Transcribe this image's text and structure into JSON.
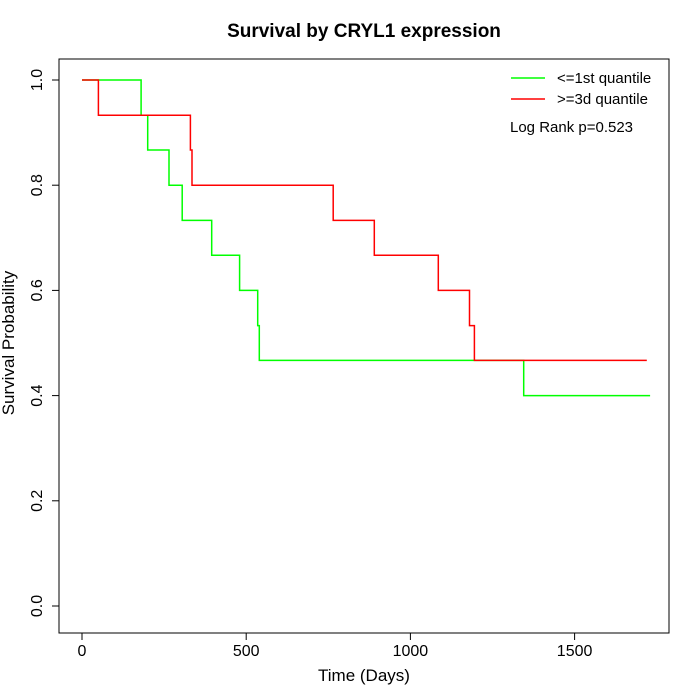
{
  "chart_data": {
    "type": "line",
    "step": true,
    "title": "Survival by CRYL1 expression",
    "xlabel": "Time (Days)",
    "ylabel": "Survival Probability",
    "xlim": [
      0,
      1750
    ],
    "ylim": [
      0,
      1.0
    ],
    "x_ticks": [
      "0",
      "500",
      "1000",
      "1500"
    ],
    "y_ticks": [
      "0.0",
      "0.2",
      "0.4",
      "0.6",
      "0.8",
      "1.0"
    ],
    "grid": false,
    "legend_position": "top-right",
    "annotation": "Log Rank p=0.523",
    "series": [
      {
        "name": "<=1st quantile",
        "color": "#00ff00",
        "points": [
          [
            0,
            1.0
          ],
          [
            180,
            1.0
          ],
          [
            180,
            0.933
          ],
          [
            200,
            0.933
          ],
          [
            200,
            0.867
          ],
          [
            265,
            0.867
          ],
          [
            265,
            0.8
          ],
          [
            305,
            0.8
          ],
          [
            305,
            0.733
          ],
          [
            395,
            0.733
          ],
          [
            395,
            0.667
          ],
          [
            480,
            0.667
          ],
          [
            480,
            0.6
          ],
          [
            535,
            0.6
          ],
          [
            535,
            0.533
          ],
          [
            540,
            0.533
          ],
          [
            540,
            0.467
          ],
          [
            1345,
            0.467
          ],
          [
            1345,
            0.4
          ],
          [
            1730,
            0.4
          ]
        ]
      },
      {
        "name": ">=3d quantile",
        "color": "#ff0000",
        "points": [
          [
            0,
            1.0
          ],
          [
            50,
            1.0
          ],
          [
            50,
            0.933
          ],
          [
            330,
            0.933
          ],
          [
            330,
            0.867
          ],
          [
            335,
            0.867
          ],
          [
            335,
            0.8
          ],
          [
            765,
            0.8
          ],
          [
            765,
            0.733
          ],
          [
            890,
            0.733
          ],
          [
            890,
            0.667
          ],
          [
            1085,
            0.667
          ],
          [
            1085,
            0.6
          ],
          [
            1180,
            0.6
          ],
          [
            1180,
            0.533
          ],
          [
            1195,
            0.533
          ],
          [
            1195,
            0.467
          ],
          [
            1720,
            0.467
          ]
        ]
      }
    ]
  }
}
